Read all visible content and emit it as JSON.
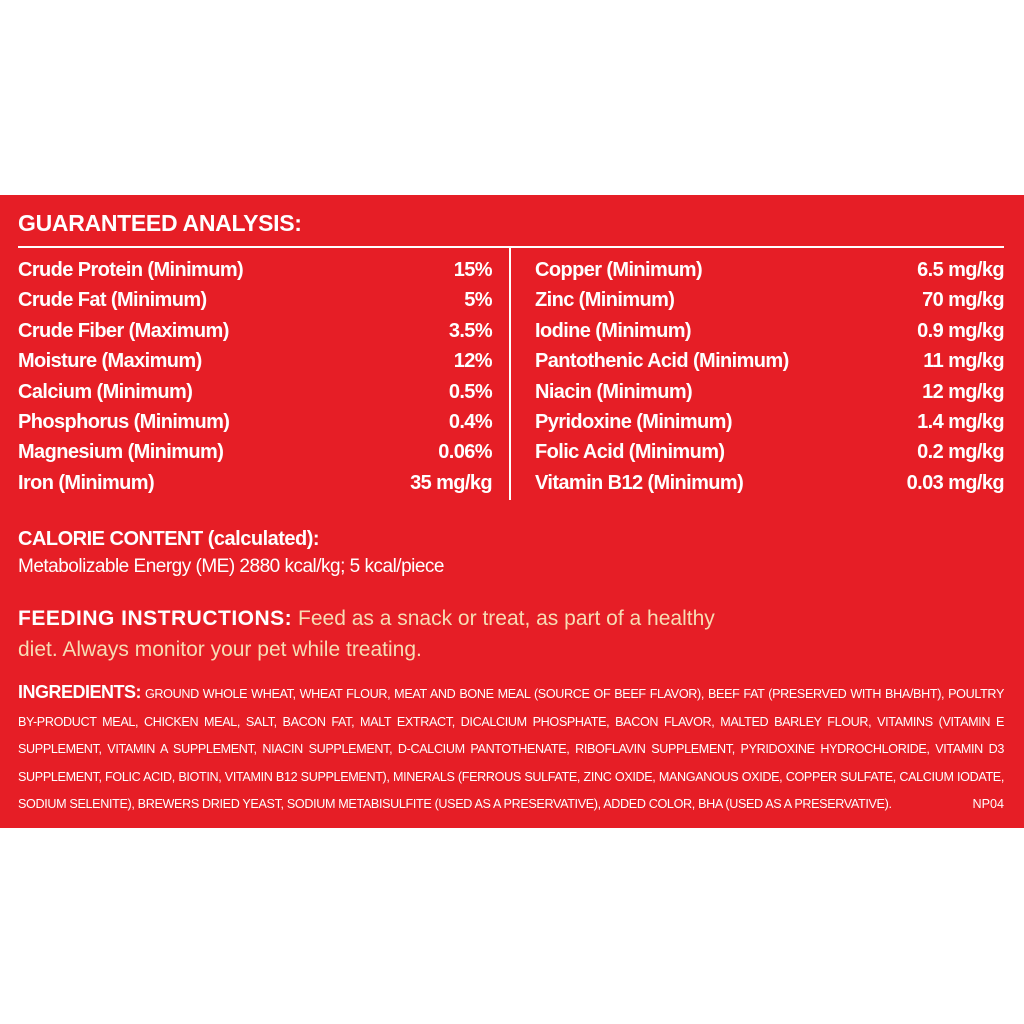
{
  "title": "GUARANTEED ANALYSIS:",
  "left_rows": [
    [
      "Crude Protein (Minimum)",
      "15%"
    ],
    [
      "Crude Fat (Minimum)",
      "5%"
    ],
    [
      "Crude Fiber (Maximum)",
      "3.5%"
    ],
    [
      "Moisture (Maximum)",
      "12%"
    ],
    [
      "Calcium (Minimum)",
      "0.5%"
    ],
    [
      "Phosphorus (Minimum)",
      "0.4%"
    ],
    [
      "Magnesium (Minimum)",
      "0.06%"
    ],
    [
      "Iron (Minimum)",
      "35 mg/kg"
    ]
  ],
  "right_rows": [
    [
      "Copper (Minimum)",
      "6.5 mg/kg"
    ],
    [
      "Zinc (Minimum)",
      "70 mg/kg"
    ],
    [
      "Iodine (Minimum)",
      "0.9 mg/kg"
    ],
    [
      "Pantothenic Acid (Minimum)",
      "11 mg/kg"
    ],
    [
      "Niacin (Minimum)",
      "12 mg/kg"
    ],
    [
      "Pyridoxine (Minimum)",
      "1.4 mg/kg"
    ],
    [
      "Folic Acid (Minimum)",
      "0.2 mg/kg"
    ],
    [
      "Vitamin B12 (Minimum)",
      "0.03 mg/kg"
    ]
  ],
  "calorie": {
    "heading": "CALORIE CONTENT (calculated):",
    "text": "Metabolizable Energy (ME) 2880 kcal/kg; 5 kcal/piece"
  },
  "feeding": {
    "label": "FEEDING INSTRUCTIONS:",
    "text": "Feed as a snack or treat, as part of a healthy diet. Always monitor your pet while treating."
  },
  "ingredients": {
    "label": "INGREDIENTS:",
    "text": "GROUND WHOLE WHEAT, WHEAT FLOUR, MEAT AND BONE MEAL (SOURCE OF BEEF FLAVOR), BEEF FAT (PRESERVED WITH BHA/BHT), POULTRY BY-PRODUCT MEAL, CHICKEN MEAL, SALT, BACON FAT, MALT EXTRACT, DICALCIUM PHOSPHATE, BACON FLAVOR, MALTED BARLEY FLOUR, VITAMINS (VITAMIN E SUPPLEMENT, VITAMIN A SUPPLEMENT, NIACIN SUPPLEMENT, D-CALCIUM PANTOTHENATE, RIBOFLAVIN SUPPLEMENT, PYRIDOXINE HYDROCHLORIDE, VITAMIN D3 SUPPLEMENT, FOLIC ACID, BIOTIN, VITAMIN B12 SUPPLEMENT), MINERALS (FERROUS SULFATE, ZINC OXIDE, MANGANOUS OXIDE, COPPER SULFATE, CALCIUM IODATE, SODIUM SELENITE), BREWERS DRIED YEAST, SODIUM METABISULFITE (USED AS A PRESERVATIVE), ADDED COLOR, BHA (USED AS A PRESERVATIVE).",
    "code": "NP04"
  }
}
